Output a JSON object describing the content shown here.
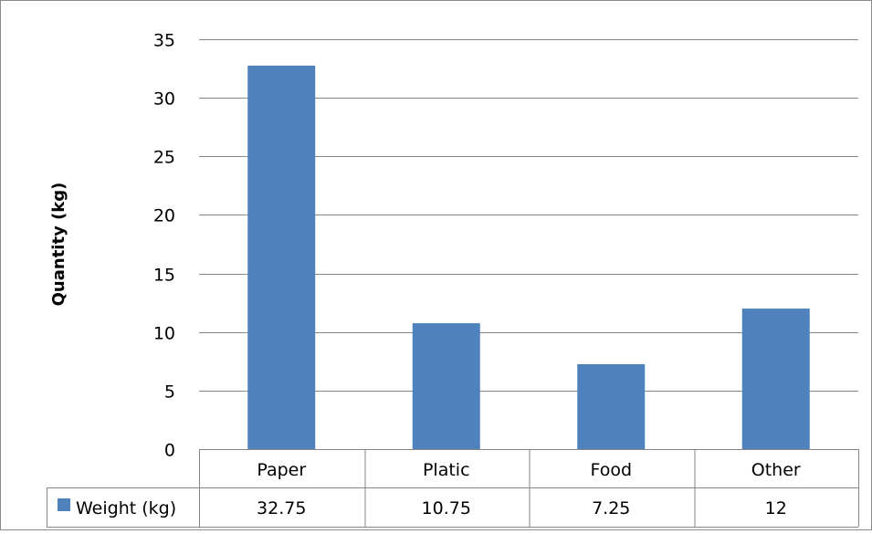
{
  "chart_data": {
    "type": "bar",
    "title": "",
    "xlabel": "",
    "ylabel": "Quantity (kg)",
    "categories": [
      "Paper",
      "Platic",
      "Food",
      "Other"
    ],
    "series": [
      {
        "name": "Weight (kg)",
        "values": [
          32.75,
          10.75,
          7.25,
          12
        ],
        "value_labels": [
          "32.75",
          "10.75",
          "7.25",
          "12"
        ],
        "color": "#4f81bd"
      }
    ],
    "ylim": [
      0,
      35
    ],
    "yticks": [
      0,
      5,
      10,
      15,
      20,
      25,
      30,
      35
    ],
    "grid": true,
    "legend": "data-table"
  }
}
